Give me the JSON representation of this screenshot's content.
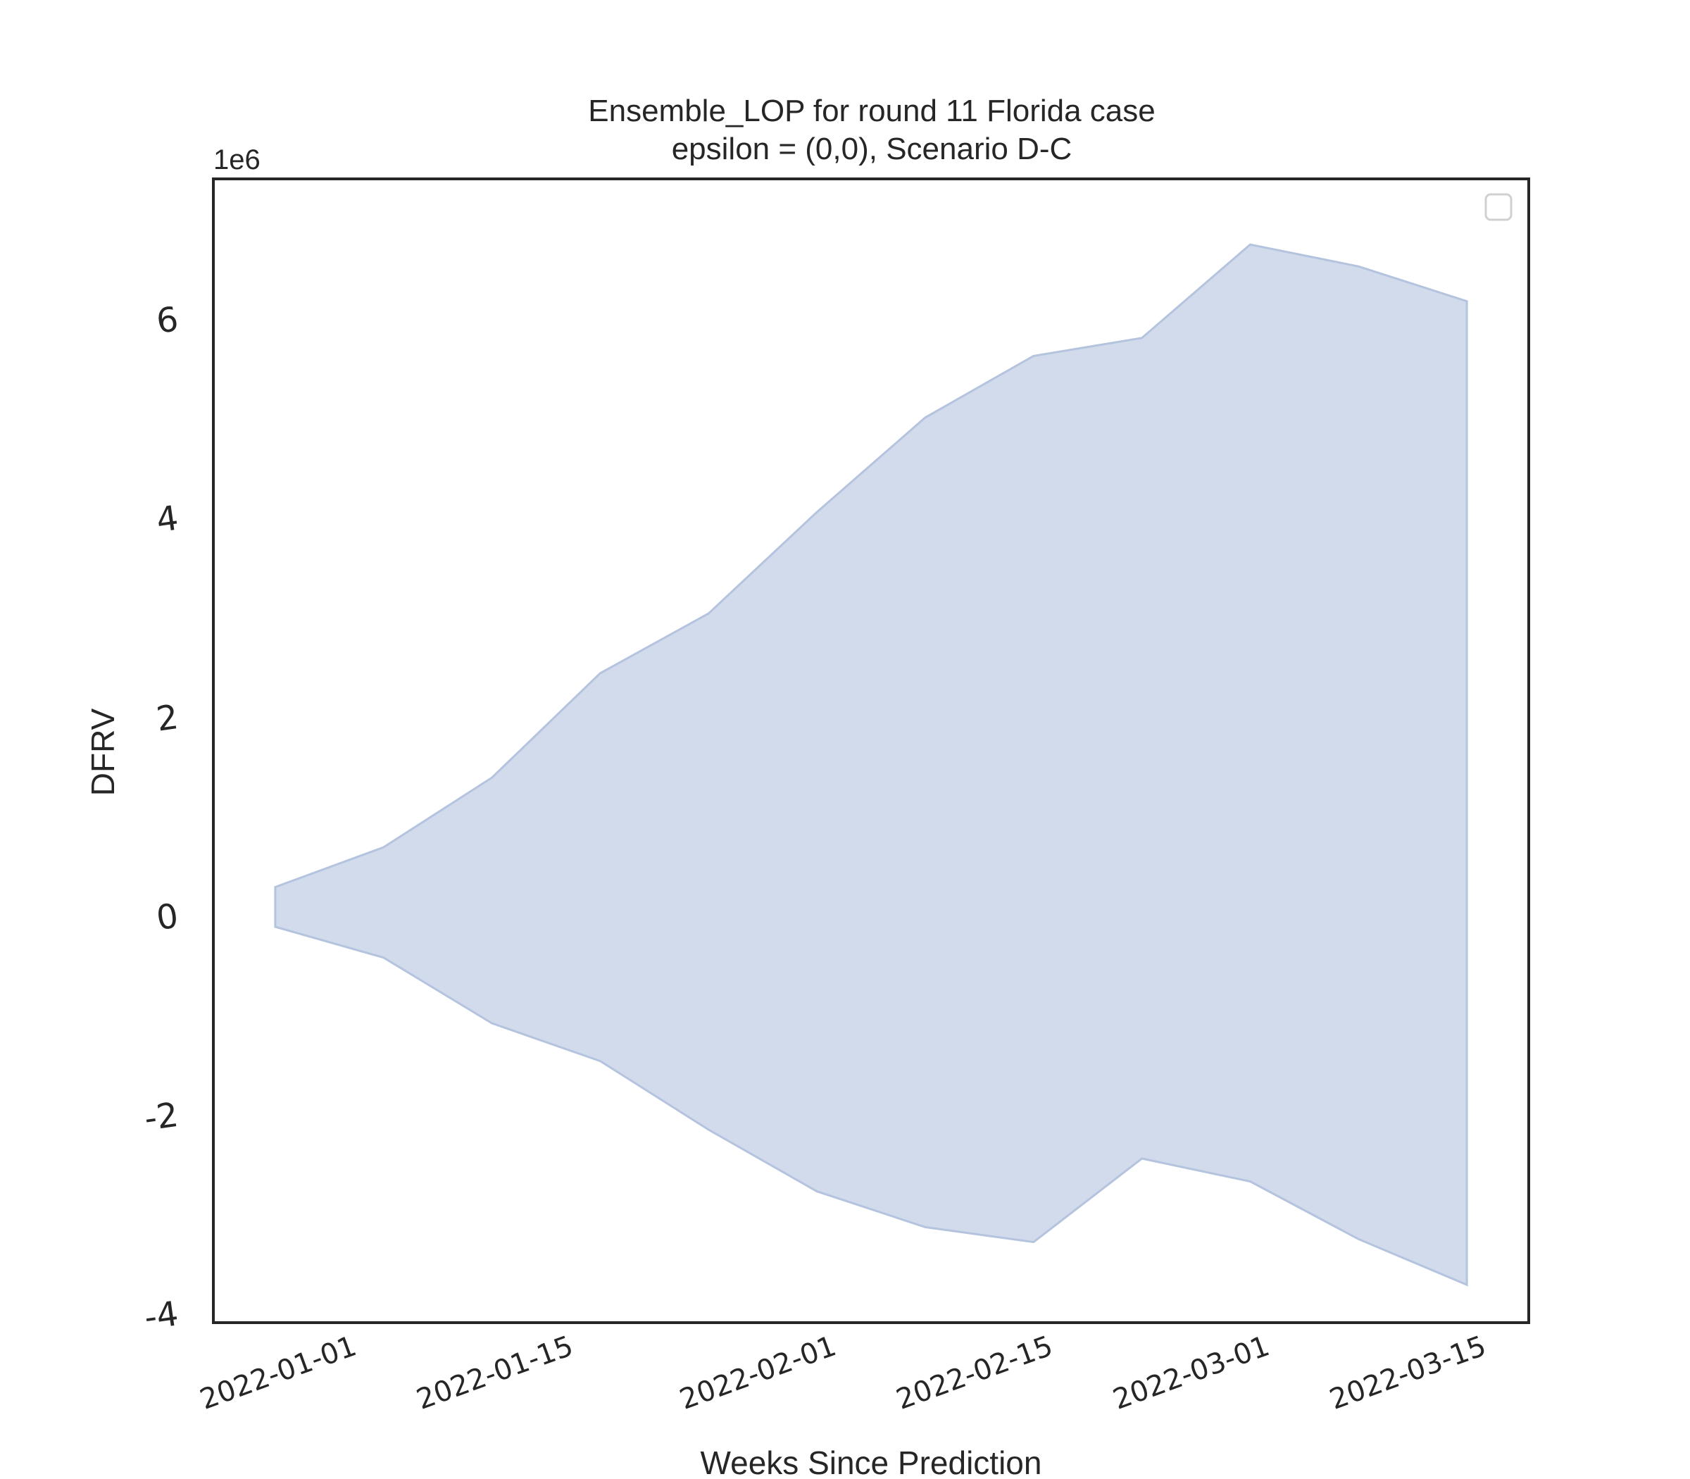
{
  "chart_data": {
    "type": "area",
    "title": "Ensemble_LOP for round 11 Florida case",
    "subtitle": "epsilon = (0,0), Scenario D-C",
    "xlabel": "Weeks Since Prediction",
    "ylabel": "DFRV",
    "y_offset_label": "1e6",
    "x_ticks": [
      "2022-01-01",
      "2022-01-15",
      "2022-02-01",
      "2022-02-15",
      "2022-03-01",
      "2022-03-15"
    ],
    "y_ticks": [
      -4,
      -2,
      0,
      2,
      4,
      6
    ],
    "xlim": [
      "2021-12-23",
      "2022-03-18"
    ],
    "ylim": [
      -4.1,
      7.4
    ],
    "grid": false,
    "legend": "top-right, empty",
    "fill_color": "#b4c3de",
    "x": [
      "2021-12-27",
      "2022-01-03",
      "2022-01-10",
      "2022-01-17",
      "2022-01-24",
      "2022-01-31",
      "2022-02-07",
      "2022-02-14",
      "2022-02-21",
      "2022-02-28",
      "2022-03-07",
      "2022-03-14"
    ],
    "series": [
      {
        "role": "upper",
        "values": [
          0.28,
          0.68,
          1.38,
          2.43,
          3.03,
          4.05,
          5.0,
          5.62,
          5.8,
          6.74,
          6.52,
          6.17
        ]
      },
      {
        "role": "lower",
        "values": [
          -0.12,
          -0.43,
          -1.09,
          -1.47,
          -2.16,
          -2.78,
          -3.14,
          -3.29,
          -2.45,
          -2.68,
          -3.26,
          -3.72
        ]
      }
    ]
  }
}
